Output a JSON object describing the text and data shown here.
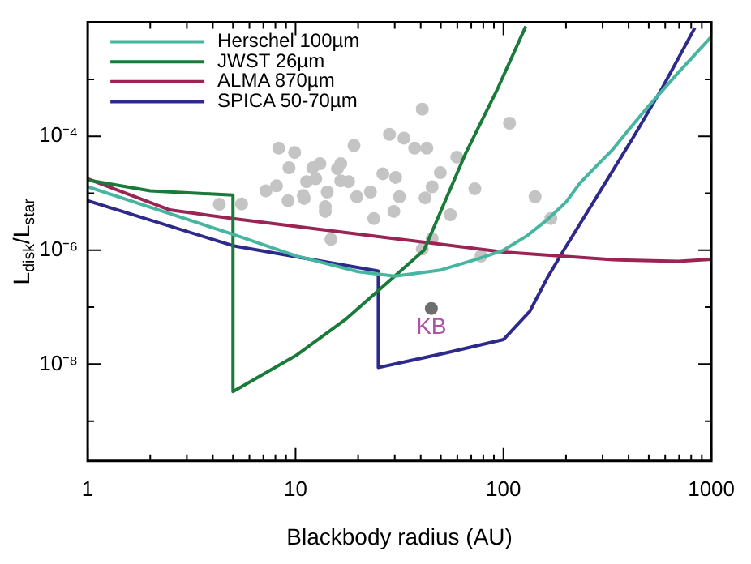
{
  "chart_data": {
    "type": "line",
    "xlabel": "Blackbody radius (AU)",
    "ylabel": "L$_{disk}$/L$_{star}$",
    "log": "xy",
    "grid": false,
    "legend": "top left",
    "xlim": [
      1,
      1000
    ],
    "ylim": [
      2e-10,
      0.01
    ],
    "xticks": [
      1,
      {
        "value": 2,
        "label": null
      },
      {
        "value": 3,
        "label": null
      },
      {
        "value": 4,
        "label": null
      },
      {
        "value": 5,
        "label": null
      },
      {
        "value": 6,
        "label": null
      },
      {
        "value": 7,
        "label": null
      },
      {
        "value": 8,
        "label": null
      },
      {
        "value": 9,
        "label": null
      },
      10,
      {
        "value": 20,
        "label": null
      },
      {
        "value": 30,
        "label": null
      },
      {
        "value": 40,
        "label": null
      },
      {
        "value": 50,
        "label": null
      },
      {
        "value": 60,
        "label": null
      },
      {
        "value": 70,
        "label": null
      },
      {
        "value": 80,
        "label": null
      },
      {
        "value": 90,
        "label": null
      },
      100,
      {
        "value": 200,
        "label": null
      },
      {
        "value": 300,
        "label": null
      },
      {
        "value": 400,
        "label": null
      },
      {
        "value": 500,
        "label": null
      },
      {
        "value": 600,
        "label": null
      },
      {
        "value": 700,
        "label": null
      },
      {
        "value": 800,
        "label": null
      },
      {
        "value": 900,
        "label": null
      },
      1000
    ],
    "yticks": [
      {
        "value": 1e-09,
        "label": null
      },
      {
        "value": 1e-08,
        "label": "10⁻⁸"
      },
      {
        "value": 1e-07,
        "label": null
      },
      {
        "value": 1e-06,
        "label": "10⁻⁶"
      },
      {
        "value": 1e-05,
        "label": null
      },
      {
        "value": 0.0001,
        "label": "10⁻⁴"
      },
      {
        "value": 0.001,
        "label": null
      }
    ],
    "series": [
      {
        "type": "scatter",
        "marker": "circle",
        "color": "#c4c4c4",
        "x": [
          4.3,
          5.5,
          7.2,
          8.1,
          8.3,
          9.9,
          9.3,
          9.2,
          10.9,
          11,
          11.3,
          12.1,
          12.5,
          13.1,
          13.9,
          14.2,
          13.9,
          14.8,
          15.9,
          16.5,
          16.5,
          18,
          19.1,
          19.7,
          22.9,
          23.8,
          26.3,
          28.3,
          30.3,
          29.7,
          31.6,
          33.2,
          37.4,
          40.7,
          42.8,
          42,
          45.4,
          49.7,
          55.5,
          59.7,
          72.9,
          107,
          142,
          169,
          45.4,
          40.7,
          78
        ],
        "values": [
          6.4e-06,
          6.5e-06,
          1.1e-05,
          1.35e-05,
          6.2e-05,
          5.2e-05,
          2.8e-05,
          7.4e-06,
          9.1e-06,
          8.1e-06,
          1.6e-05,
          2.8e-05,
          1.8e-05,
          3.3e-05,
          5.8e-06,
          1.05e-05,
          4.8e-06,
          1.55e-06,
          2.7e-05,
          3.3e-05,
          1.65e-05,
          1.6e-05,
          6.9e-05,
          8.7e-06,
          1.05e-05,
          3.6e-06,
          2.2e-05,
          0.000108,
          1.9e-05,
          4.8e-06,
          8.7e-06,
          9.3e-05,
          6.2e-05,
          0.0003,
          6.2e-05,
          8.3e-06,
          1.3e-05,
          2.3e-05,
          4.2e-06,
          4.3e-05,
          1.2e-05,
          0.00017,
          8.7e-06,
          3.6e-06,
          1.6e-06,
          1.05e-06,
          7.9e-07
        ]
      },
      {
        "name": "KB",
        "type": "scatter",
        "marker": "circle",
        "color": "#6e6e6e",
        "x": [
          45
        ],
        "values": [
          9.5e-08
        ]
      },
      {
        "name": "Herschel 100µm",
        "marker": "none",
        "color": "#46b6a0",
        "x": [
          1,
          5,
          10,
          20,
          30,
          50,
          75,
          100,
          130,
          162,
          200,
          233,
          280,
          336,
          400,
          481,
          692,
          1000
        ],
        "values": [
          1.3e-05,
          1.9e-06,
          8e-07,
          4.2e-07,
          3.5e-07,
          4.5e-07,
          7e-07,
          1e-06,
          1.8e-06,
          3.4e-06,
          7e-06,
          1.5e-05,
          3e-05,
          5.9e-05,
          0.00013,
          0.00029,
          0.0013,
          0.0056
        ]
      },
      {
        "name": "JWST 26µm",
        "marker": "none",
        "color": "#1a7a3a",
        "x": [
          1,
          2,
          5,
          5,
          10,
          17.3,
          30,
          41.5,
          65.6,
          94,
          128
        ],
        "values": [
          1.7e-05,
          1.1e-05,
          9.3e-06,
          3.3e-09,
          1.4e-08,
          6e-08,
          3.5e-07,
          1e-06,
          4.9e-05,
          0.0007,
          0.0085
        ]
      },
      {
        "name": "ALMA 870µm",
        "marker": "none",
        "color": "#9a2555",
        "x": [
          1,
          2.48,
          5,
          30,
          100,
          336,
          692,
          1000
        ],
        "values": [
          1.8e-05,
          5.1e-06,
          3.6e-06,
          1.6e-06,
          9.3e-07,
          6.8e-07,
          6.4e-07,
          6.9e-07
        ]
      },
      {
        "name": "SPICA 50-70µm",
        "marker": "none",
        "color": "#2e2a8c",
        "x": [
          1,
          5,
          10,
          25,
          25,
          54,
          100,
          134,
          162,
          195,
          279,
          424,
          580,
          833
        ],
        "values": [
          7.4e-06,
          1.2e-06,
          7.7e-07,
          4.3e-07,
          8.7e-09,
          1.6e-08,
          2.7e-08,
          8.5e-08,
          3.2e-07,
          1e-06,
          8.3e-06,
          0.0001,
          0.0007,
          0.008
        ]
      }
    ]
  }
}
